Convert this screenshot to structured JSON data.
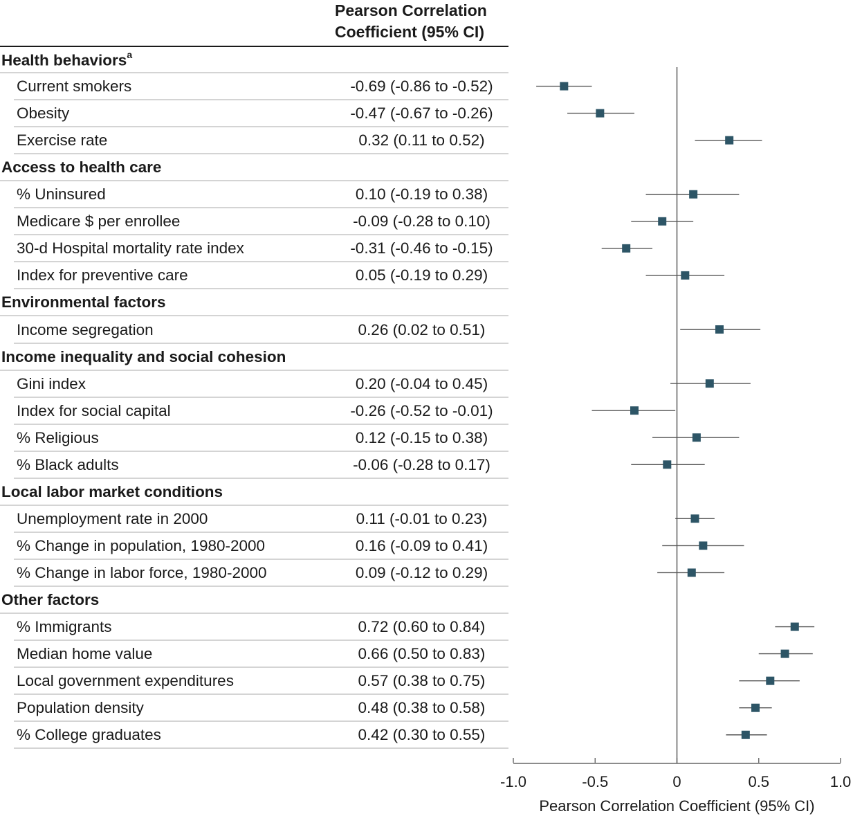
{
  "table": {
    "column_header_line1": "Pearson Correlation",
    "column_header_line2": "Coefficient (95% CI)"
  },
  "chart_data": {
    "type": "scatter",
    "subtype": "forest-plot",
    "xlabel": "Pearson Correlation Coefficient (95% CI)",
    "xlim": [
      -1.0,
      1.0
    ],
    "xticks": [
      -1.0,
      -0.5,
      0,
      0.5,
      1.0
    ],
    "xtick_labels": [
      "-1.0",
      "-0.5",
      "0",
      "0.5",
      "1.0"
    ],
    "reference_line": 0,
    "marker_color": "#2d5566",
    "ci_line_color": "#555555",
    "groups": [
      {
        "name": "Health behaviors",
        "superscript": "a",
        "items": [
          {
            "label": "Current smokers",
            "estimate": -0.69,
            "lower": -0.86,
            "upper": -0.52,
            "text": "-0.69 (-0.86 to -0.52)"
          },
          {
            "label": "Obesity",
            "estimate": -0.47,
            "lower": -0.67,
            "upper": -0.26,
            "text": "-0.47 (-0.67 to -0.26)"
          },
          {
            "label": "Exercise rate",
            "estimate": 0.32,
            "lower": 0.11,
            "upper": 0.52,
            "text": "0.32 (0.11 to 0.52)"
          }
        ]
      },
      {
        "name": "Access to health care",
        "superscript": "",
        "items": [
          {
            "label": "% Uninsured",
            "estimate": 0.1,
            "lower": -0.19,
            "upper": 0.38,
            "text": "0.10 (-0.19 to 0.38)"
          },
          {
            "label": "Medicare $ per enrollee",
            "estimate": -0.09,
            "lower": -0.28,
            "upper": 0.1,
            "text": "-0.09 (-0.28 to 0.10)"
          },
          {
            "label": "30-d Hospital mortality rate index",
            "estimate": -0.31,
            "lower": -0.46,
            "upper": -0.15,
            "text": "-0.31 (-0.46 to -0.15)"
          },
          {
            "label": "Index for preventive care",
            "estimate": 0.05,
            "lower": -0.19,
            "upper": 0.29,
            "text": "0.05 (-0.19 to 0.29)"
          }
        ]
      },
      {
        "name": "Environmental factors",
        "superscript": "",
        "items": [
          {
            "label": "Income segregation",
            "estimate": 0.26,
            "lower": 0.02,
            "upper": 0.51,
            "text": "0.26 (0.02 to 0.51)"
          }
        ]
      },
      {
        "name": "Income inequality and social cohesion",
        "superscript": "",
        "items": [
          {
            "label": "Gini index",
            "estimate": 0.2,
            "lower": -0.04,
            "upper": 0.45,
            "text": "0.20 (-0.04 to 0.45)"
          },
          {
            "label": "Index for social capital",
            "estimate": -0.26,
            "lower": -0.52,
            "upper": -0.01,
            "text": "-0.26 (-0.52 to -0.01)"
          },
          {
            "label": "% Religious",
            "estimate": 0.12,
            "lower": -0.15,
            "upper": 0.38,
            "text": "0.12 (-0.15 to 0.38)"
          },
          {
            "label": "% Black adults",
            "estimate": -0.06,
            "lower": -0.28,
            "upper": 0.17,
            "text": "-0.06 (-0.28 to 0.17)"
          }
        ]
      },
      {
        "name": "Local labor market conditions",
        "superscript": "",
        "items": [
          {
            "label": "Unemployment rate in 2000",
            "estimate": 0.11,
            "lower": -0.01,
            "upper": 0.23,
            "text": "0.11 (-0.01 to 0.23)"
          },
          {
            "label": "% Change in population, 1980-2000",
            "estimate": 0.16,
            "lower": -0.09,
            "upper": 0.41,
            "text": "0.16 (-0.09 to 0.41)"
          },
          {
            "label": "% Change in labor force, 1980-2000",
            "estimate": 0.09,
            "lower": -0.12,
            "upper": 0.29,
            "text": "0.09 (-0.12 to 0.29)"
          }
        ]
      },
      {
        "name": "Other factors",
        "superscript": "",
        "items": [
          {
            "label": "% Immigrants",
            "estimate": 0.72,
            "lower": 0.6,
            "upper": 0.84,
            "text": "0.72 (0.60 to 0.84)"
          },
          {
            "label": "Median home value",
            "estimate": 0.66,
            "lower": 0.5,
            "upper": 0.83,
            "text": "0.66 (0.50 to 0.83)"
          },
          {
            "label": "Local government expenditures",
            "estimate": 0.57,
            "lower": 0.38,
            "upper": 0.75,
            "text": "0.57 (0.38 to 0.75)"
          },
          {
            "label": "Population density",
            "estimate": 0.48,
            "lower": 0.38,
            "upper": 0.58,
            "text": "0.48 (0.38 to 0.58)"
          },
          {
            "label": "% College graduates",
            "estimate": 0.42,
            "lower": 0.3,
            "upper": 0.55,
            "text": "0.42 (0.30 to 0.55)"
          }
        ]
      }
    ]
  }
}
